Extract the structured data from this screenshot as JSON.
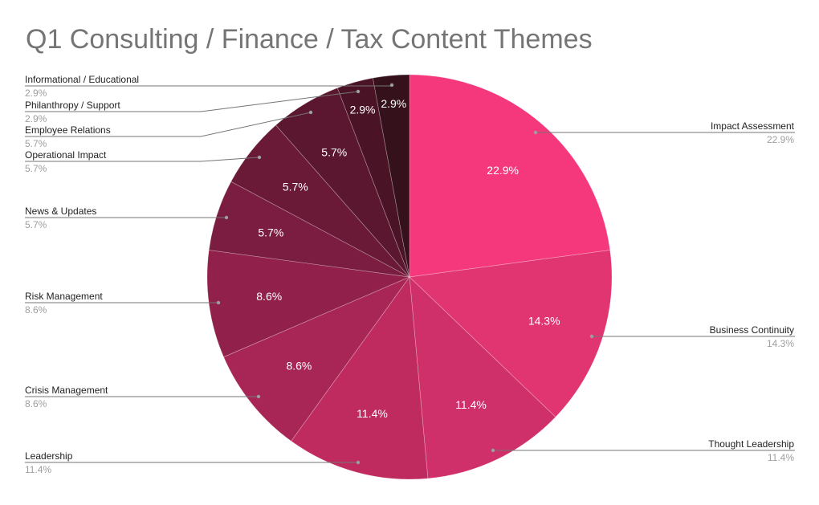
{
  "chart_data": {
    "type": "pie",
    "title": "Q1 Consulting / Finance / Tax Content Themes",
    "slices": [
      {
        "label": "Impact Assessment",
        "value": 22.9,
        "display": "22.9%",
        "color": "#f5387b"
      },
      {
        "label": "Business Continuity",
        "value": 14.3,
        "display": "14.3%",
        "color": "#e13572"
      },
      {
        "label": "Thought Leadership",
        "value": 11.4,
        "display": "11.4%",
        "color": "#d03069"
      },
      {
        "label": "Leadership",
        "value": 11.4,
        "display": "11.4%",
        "color": "#bf2b5f"
      },
      {
        "label": "Crisis Management",
        "value": 8.6,
        "display": "8.6%",
        "color": "#a82655"
      },
      {
        "label": "Risk Management",
        "value": 8.6,
        "display": "8.6%",
        "color": "#91214b"
      },
      {
        "label": "News & Updates",
        "value": 5.7,
        "display": "5.7%",
        "color": "#7b1d40"
      },
      {
        "label": "Operational Impact",
        "value": 5.7,
        "display": "5.7%",
        "color": "#6a1a37"
      },
      {
        "label": "Employee Relations",
        "value": 5.7,
        "display": "5.7%",
        "color": "#5a172f"
      },
      {
        "label": "Philanthropy / Support",
        "value": 2.9,
        "display": "2.9%",
        "color": "#4a1426"
      },
      {
        "label": "Informational / Educational",
        "value": 2.9,
        "display": "2.9%",
        "color": "#34111b"
      }
    ],
    "start": "top",
    "direction": "clockwise",
    "legend": "labeled-callouts"
  }
}
